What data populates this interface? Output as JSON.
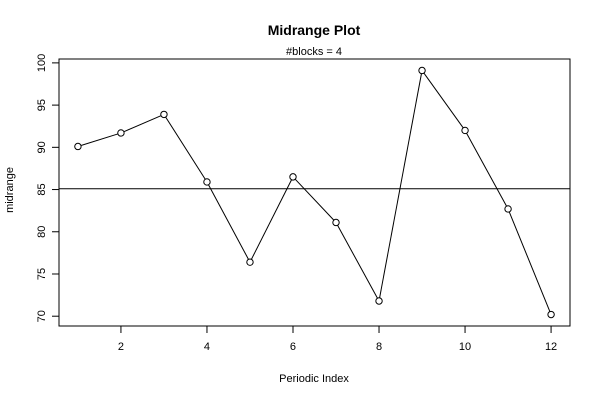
{
  "chart_data": {
    "type": "line",
    "title": "Midrange Plot",
    "subtitle": "#blocks =  4",
    "xlabel": "Periodic Index",
    "ylabel": "midrange",
    "x": [
      1,
      2,
      3,
      4,
      5,
      6,
      7,
      8,
      9,
      10,
      11,
      12
    ],
    "values": [
      90.1,
      91.7,
      93.9,
      85.9,
      76.4,
      86.5,
      81.1,
      71.8,
      99.1,
      92.0,
      82.7,
      70.2
    ],
    "reference_line": 85.1,
    "xlim": [
      0.56,
      12.44
    ],
    "ylim": [
      68.84,
      100.46
    ],
    "x_ticks": [
      2,
      4,
      6,
      8,
      10,
      12
    ],
    "y_ticks": [
      70,
      75,
      80,
      85,
      90,
      95,
      100
    ],
    "grid": false,
    "line_color": "#000000",
    "marker": "open-circle"
  }
}
